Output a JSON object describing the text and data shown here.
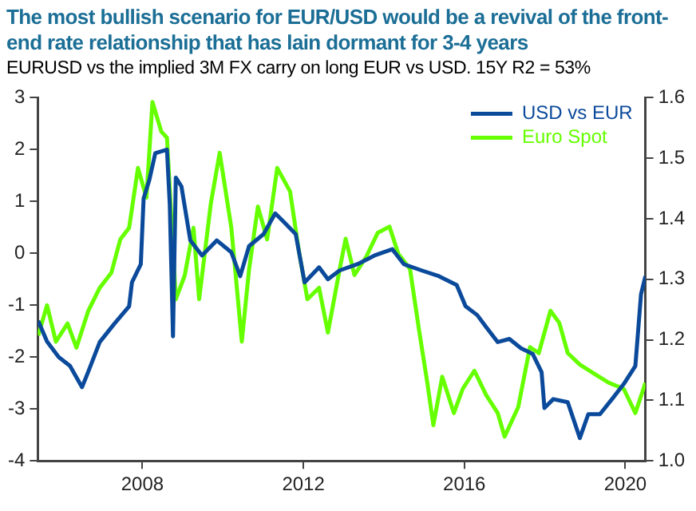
{
  "chart_data": {
    "type": "line",
    "title": "The most bullish scenario for EUR/USD would be a revival of the front-end rate relationship that has lain dormant for 3-4 years",
    "subtitle": "EURUSD vs the implied 3M FX carry on long EUR vs USD. 15Y R2 = 53%",
    "xlim": [
      2005.4,
      2020.5
    ],
    "xticks": [
      2008,
      2012,
      2016,
      2020
    ],
    "ylim": [
      -4,
      3
    ],
    "yticks": [
      -4,
      -3,
      -2,
      -1,
      0,
      1,
      2,
      3
    ],
    "y2lim": [
      1.0,
      1.6
    ],
    "y2ticks": [
      {
        "value": 1,
        "label": "1.0"
      },
      1.1,
      1.2,
      1.3,
      1.4,
      1.5,
      1.6
    ],
    "grid": false,
    "legend": "top right",
    "marker": "none",
    "line_style": "solid",
    "series": [
      {
        "name": "USD vs EUR",
        "color": "#0b4a9b",
        "axis": "y",
        "x": [
          2005.41,
          2005.63,
          2005.92,
          2006.2,
          2006.5,
          2006.65,
          2006.94,
          2007.3,
          2007.67,
          2007.74,
          2007.96,
          2008.03,
          2008.17,
          2008.32,
          2008.61,
          2008.68,
          2008.76,
          2008.83,
          2008.97,
          2009.19,
          2009.48,
          2009.85,
          2010.21,
          2010.43,
          2010.65,
          2011.01,
          2011.3,
          2011.52,
          2011.81,
          2012.03,
          2012.39,
          2012.61,
          2012.9,
          2013.34,
          2013.77,
          2014.21,
          2014.5,
          2014.94,
          2015.37,
          2015.81,
          2016.03,
          2016.32,
          2016.54,
          2016.83,
          2017.12,
          2017.41,
          2017.7,
          2017.92,
          2017.99,
          2018.21,
          2018.57,
          2018.87,
          2019.08,
          2019.37,
          2019.67,
          2019.96,
          2020.25,
          2020.39,
          2020.5
        ],
        "values": [
          -1.3,
          -1.7,
          -2.0,
          -2.17,
          -2.58,
          -2.29,
          -1.71,
          -1.36,
          -1.02,
          -0.56,
          -0.21,
          1.06,
          1.41,
          1.93,
          2.0,
          0.94,
          -1.6,
          1.46,
          1.29,
          0.25,
          -0.04,
          0.25,
          0.02,
          -0.44,
          0.14,
          0.37,
          0.77,
          0.6,
          0.37,
          -0.56,
          -0.27,
          -0.5,
          -0.33,
          -0.21,
          -0.04,
          0.08,
          -0.21,
          -0.33,
          -0.44,
          -0.61,
          -1.02,
          -1.19,
          -1.42,
          -1.71,
          -1.65,
          -1.83,
          -1.94,
          -2.29,
          -2.98,
          -2.81,
          -2.87,
          -3.56,
          -3.1,
          -3.1,
          -2.81,
          -2.52,
          -2.17,
          -0.79,
          -0.44
        ]
      },
      {
        "name": "Euro Spot",
        "color": "#66ff00",
        "axis": "y2",
        "x": [
          2005.41,
          2005.63,
          2005.85,
          2006.14,
          2006.36,
          2006.65,
          2006.94,
          2007.23,
          2007.45,
          2007.67,
          2007.89,
          2008.1,
          2008.25,
          2008.47,
          2008.61,
          2008.83,
          2009.05,
          2009.27,
          2009.41,
          2009.7,
          2009.92,
          2010.21,
          2010.47,
          2010.65,
          2010.87,
          2011.1,
          2011.35,
          2011.67,
          2011.89,
          2012.1,
          2012.39,
          2012.61,
          2012.9,
          2013.05,
          2013.27,
          2013.56,
          2013.85,
          2014.14,
          2014.36,
          2014.65,
          2014.87,
          2015.08,
          2015.23,
          2015.45,
          2015.74,
          2015.96,
          2016.25,
          2016.54,
          2016.83,
          2017.0,
          2017.34,
          2017.63,
          2017.85,
          2018.14,
          2018.36,
          2018.57,
          2018.87,
          2019.23,
          2019.59,
          2019.96,
          2020.25,
          2020.5
        ],
        "values": [
          1.207,
          1.257,
          1.197,
          1.227,
          1.187,
          1.247,
          1.286,
          1.311,
          1.366,
          1.385,
          1.484,
          1.435,
          1.593,
          1.544,
          1.534,
          1.267,
          1.306,
          1.385,
          1.267,
          1.425,
          1.509,
          1.385,
          1.197,
          1.316,
          1.42,
          1.366,
          1.484,
          1.445,
          1.346,
          1.267,
          1.286,
          1.212,
          1.316,
          1.367,
          1.307,
          1.337,
          1.377,
          1.387,
          1.342,
          1.317,
          1.218,
          1.129,
          1.059,
          1.139,
          1.079,
          1.119,
          1.149,
          1.109,
          1.079,
          1.04,
          1.089,
          1.188,
          1.178,
          1.248,
          1.228,
          1.178,
          1.159,
          1.144,
          1.129,
          1.119,
          1.079,
          1.129
        ]
      }
    ]
  }
}
